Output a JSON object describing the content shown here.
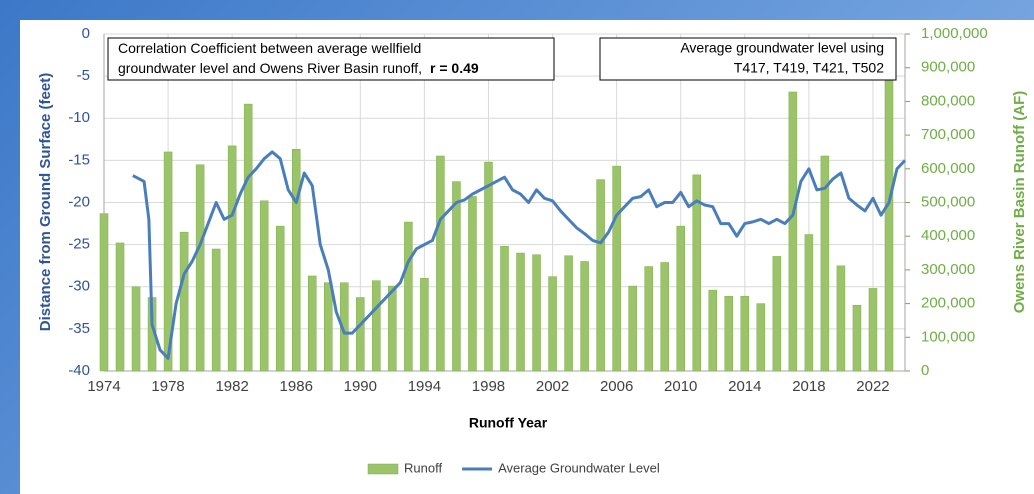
{
  "chart_data": {
    "type": "combo",
    "xlabel": "Runoff Year",
    "ylabel": "Distance from Ground Surface (feet)",
    "y2label": "Owens River Basin Runoff (AF)",
    "annotations": [
      {
        "lines": [
          "Correlation Coefficient between average wellfield",
          "groundwater level and Owens River Basin runoff,"
        ],
        "bold": "r = 0.49"
      },
      {
        "lines": [
          "Average groundwater level using",
          "T417, T419, T421, T502"
        ]
      }
    ],
    "xlim": [
      1974,
      2024
    ],
    "xticks": [
      1974,
      1978,
      1982,
      1986,
      1990,
      1994,
      1998,
      2002,
      2006,
      2010,
      2014,
      2018,
      2022
    ],
    "ylim": [
      -40,
      0
    ],
    "yticks": [
      0,
      -5,
      -10,
      -15,
      -20,
      -25,
      -30,
      -35,
      -40
    ],
    "y2lim": [
      0,
      1000000
    ],
    "y2ticks": [
      {
        "value": 1000000,
        "label": "1,000,000"
      },
      {
        "value": 900000,
        "label": "900,000"
      },
      {
        "value": 800000,
        "label": "800,000"
      },
      {
        "value": 700000,
        "label": "700,000"
      },
      {
        "value": 600000,
        "label": "600,000"
      },
      {
        "value": 500000,
        "label": "500,000"
      },
      {
        "value": 400000,
        "label": "400,000"
      },
      {
        "value": 300000,
        "label": "300,000"
      },
      {
        "value": 200000,
        "label": "200,000"
      },
      {
        "value": 100000,
        "label": "100,000"
      },
      0
    ],
    "grid": true,
    "legend": "bottom",
    "series": [
      {
        "name": "Runoff",
        "type": "bar",
        "axis": "y2",
        "color": "#9bc46a",
        "x": [
          1974,
          1975,
          1976,
          1977,
          1978,
          1979,
          1980,
          1981,
          1982,
          1983,
          1984,
          1985,
          1986,
          1987,
          1988,
          1989,
          1990,
          1991,
          1992,
          1993,
          1994,
          1995,
          1996,
          1997,
          1998,
          1999,
          2000,
          2001,
          2002,
          2003,
          2004,
          2005,
          2006,
          2007,
          2008,
          2009,
          2010,
          2011,
          2012,
          2013,
          2014,
          2015,
          2016,
          2017,
          2018,
          2019,
          2020,
          2021,
          2022,
          2023
        ],
        "values": [
          467000,
          380000,
          250000,
          218000,
          650000,
          412000,
          612000,
          362000,
          668000,
          792000,
          505000,
          430000,
          658000,
          282000,
          262000,
          262000,
          218000,
          268000,
          252000,
          442000,
          275000,
          638000,
          562000,
          518000,
          620000,
          370000,
          350000,
          345000,
          280000,
          342000,
          325000,
          568000,
          608000,
          252000,
          310000,
          322000,
          430000,
          582000,
          240000,
          222000,
          222000,
          200000,
          340000,
          828000,
          405000,
          638000,
          312000,
          195000,
          245000,
          890000
        ]
      },
      {
        "name": "Average Groundwater Level",
        "type": "line",
        "color": "#4a7ebb",
        "x": [
          1975.8,
          1976.5,
          1976.8,
          1977,
          1977.5,
          1978,
          1978.5,
          1979,
          1979.5,
          1980,
          1980.5,
          1981,
          1981.5,
          1982,
          1982.5,
          1983,
          1983.5,
          1984,
          1984.5,
          1985,
          1985.5,
          1986,
          1986.5,
          1987,
          1987.5,
          1988,
          1988.5,
          1989,
          1989.5,
          1990,
          1990.5,
          1991,
          1991.5,
          1992,
          1992.5,
          1993,
          1993.5,
          1994,
          1994.5,
          1995,
          1995.5,
          1996,
          1996.5,
          1997,
          1997.5,
          1998,
          1998.5,
          1999,
          1999.5,
          2000,
          2000.5,
          2001,
          2001.5,
          2002,
          2002.5,
          2003,
          2003.5,
          2004,
          2004.5,
          2005,
          2005.5,
          2006,
          2006.5,
          2007,
          2007.5,
          2008,
          2008.5,
          2009,
          2009.5,
          2010,
          2010.5,
          2011,
          2011.5,
          2012,
          2012.5,
          2013,
          2013.5,
          2014,
          2014.5,
          2015,
          2015.5,
          2016,
          2016.5,
          2017,
          2017.5,
          2018,
          2018.5,
          2019,
          2019.5,
          2020,
          2020.5,
          2021,
          2021.5,
          2022,
          2022.5,
          2023,
          2023.5,
          2024
        ],
        "values": [
          -16.8,
          -17.5,
          -22,
          -34.5,
          -37.5,
          -38.5,
          -32,
          -28.5,
          -27,
          -25,
          -22.5,
          -20,
          -22,
          -21.5,
          -19,
          -17,
          -16,
          -14.8,
          -14,
          -14.8,
          -18.5,
          -20,
          -16.5,
          -18,
          -25,
          -28,
          -33,
          -35.5,
          -35.5,
          -34.5,
          -33.5,
          -32.5,
          -31.5,
          -30.5,
          -29.5,
          -27,
          -25.5,
          -25,
          -24.5,
          -22,
          -21,
          -20,
          -19.7,
          -19,
          -18.5,
          -18,
          -17.5,
          -17,
          -18.5,
          -19,
          -20,
          -18.5,
          -19.5,
          -19.8,
          -21,
          -22,
          -23,
          -23.7,
          -24.5,
          -24.8,
          -23.5,
          -21.5,
          -20.5,
          -19.5,
          -19.3,
          -18.5,
          -20.5,
          -20,
          -20,
          -18.8,
          -20.5,
          -19.8,
          -20.3,
          -20.5,
          -22.5,
          -22.5,
          -24,
          -22.5,
          -22.3,
          -22,
          -22.5,
          -22,
          -22.5,
          -21.5,
          -17.5,
          -16,
          -18.5,
          -18.3,
          -17.2,
          -16.5,
          -19.5,
          -20.3,
          -21,
          -19.5,
          -21.5,
          -20,
          -16,
          -15
        ]
      }
    ]
  }
}
